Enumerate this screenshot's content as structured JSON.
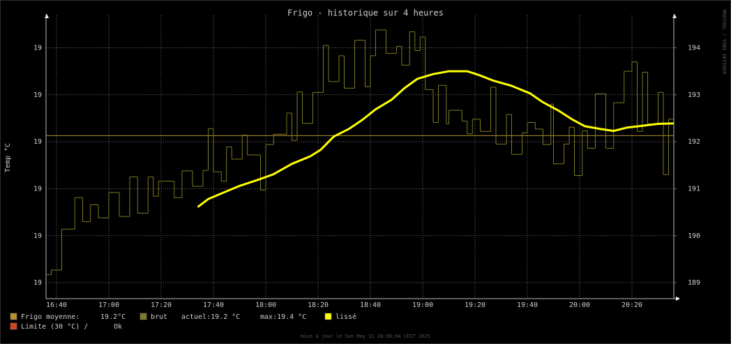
{
  "chart_data": {
    "type": "line",
    "title": "Frigo - historique sur 4 heures",
    "y_label": "Temp °C",
    "side_text": "RRDTOOL / TOBI OETIKER",
    "footer": "mise à jour le Sun May 11 20:36:04 CEST 2025",
    "xlim": [
      "16:36",
      "20:36"
    ],
    "xticks": [
      "16:40",
      "17:00",
      "17:20",
      "17:40",
      "18:00",
      "18:20",
      "18:40",
      "19:00",
      "19:20",
      "19:40",
      "20:00",
      "20:20"
    ],
    "ylim": [
      18.866,
      19.469
    ],
    "yticks": [
      {
        "value": 18.9,
        "label": "19"
      },
      {
        "value": 19.0,
        "label": "19"
      },
      {
        "value": 19.1,
        "label": "19"
      },
      {
        "value": 19.2,
        "label": "19"
      },
      {
        "value": 19.3,
        "label": "19"
      },
      {
        "value": 19.4,
        "label": "19"
      }
    ],
    "y2lim": [
      188.66,
      194.69
    ],
    "y2ticks": [
      189,
      190,
      191,
      192,
      193,
      194
    ],
    "grid": true,
    "hlines": [
      {
        "name": "Frigo moyenne:",
        "value": 19.213,
        "label": "19.2°C",
        "color": "#b8922a"
      }
    ],
    "series": [
      {
        "name": "brut",
        "color": "#7d7a22",
        "step": true,
        "notes": [
          "actuel:19.2 °C",
          "max:19.4 °C"
        ],
        "x": [
          "16:36",
          "16:38",
          "16:42",
          "16:47",
          "16:50",
          "16:53",
          "16:56",
          "17:00",
          "17:04",
          "17:08",
          "17:11",
          "17:15",
          "17:17",
          "17:19",
          "17:25",
          "17:28",
          "17:32",
          "17:36",
          "17:38",
          "17:40",
          "17:43",
          "17:45",
          "17:47",
          "17:51",
          "17:53",
          "17:58",
          "18:00",
          "18:03",
          "18:08",
          "18:10",
          "18:12",
          "18:14",
          "18:18",
          "18:22",
          "18:24",
          "18:28",
          "18:30",
          "18:34",
          "18:38",
          "18:40",
          "18:42",
          "18:46",
          "18:50",
          "18:52",
          "18:55",
          "18:57",
          "18:59",
          "19:01",
          "19:04",
          "19:06",
          "19:09",
          "19:10",
          "19:15",
          "19:17",
          "19:19",
          "19:22",
          "19:26",
          "19:28",
          "19:32",
          "19:34",
          "19:38",
          "19:40",
          "19:43",
          "19:46",
          "19:49",
          "19:50",
          "19:54",
          "19:56",
          "19:58",
          "20:01",
          "20:03",
          "20:06",
          "20:10",
          "20:13",
          "20:17",
          "20:20",
          "20:22",
          "20:24",
          "20:26",
          "20:30",
          "20:32",
          "20:34"
        ],
        "values": [
          18.917,
          18.927,
          19.014,
          19.081,
          19.03,
          19.066,
          19.038,
          19.092,
          19.041,
          19.125,
          19.048,
          19.125,
          19.084,
          19.116,
          19.081,
          19.138,
          19.105,
          19.139,
          19.228,
          19.136,
          19.116,
          19.189,
          19.163,
          19.214,
          19.172,
          19.097,
          19.194,
          19.216,
          19.261,
          19.203,
          19.306,
          19.239,
          19.305,
          19.405,
          19.328,
          19.383,
          19.314,
          19.416,
          19.317,
          19.383,
          19.438,
          19.388,
          19.403,
          19.363,
          19.434,
          19.394,
          19.423,
          19.311,
          19.241,
          19.32,
          19.238,
          19.267,
          19.244,
          19.217,
          19.248,
          19.222,
          19.316,
          19.195,
          19.258,
          19.173,
          19.219,
          19.241,
          19.227,
          19.194,
          19.28,
          19.153,
          19.195,
          19.231,
          19.128,
          19.223,
          19.186,
          19.302,
          19.186,
          19.283,
          19.35,
          19.37,
          19.222,
          19.348,
          19.238,
          19.305,
          19.13,
          19.248
        ]
      },
      {
        "name": "lissé",
        "color": "#ffff00",
        "step": false,
        "x": [
          "17:34",
          "17:38",
          "17:44",
          "17:50",
          "17:57",
          "18:03",
          "18:10",
          "18:17",
          "18:21",
          "18:26",
          "18:32",
          "18:37",
          "18:42",
          "18:48",
          "18:53",
          "18:58",
          "19:04",
          "19:10",
          "19:17",
          "19:22",
          "19:27",
          "19:34",
          "19:41",
          "19:46",
          "19:52",
          "19:57",
          "20:02",
          "20:08",
          "20:13",
          "20:18",
          "20:24",
          "20:30",
          "20:36"
        ],
        "values": [
          19.061,
          19.078,
          19.092,
          19.106,
          19.119,
          19.131,
          19.153,
          19.169,
          19.183,
          19.211,
          19.228,
          19.247,
          19.269,
          19.289,
          19.314,
          19.334,
          19.344,
          19.35,
          19.35,
          19.341,
          19.33,
          19.319,
          19.303,
          19.284,
          19.266,
          19.248,
          19.233,
          19.227,
          19.223,
          19.23,
          19.234,
          19.238,
          19.239
        ]
      }
    ],
    "limit": {
      "name": "Limite (30 °C) /",
      "status": "Ok",
      "color": "#d9401c"
    }
  }
}
